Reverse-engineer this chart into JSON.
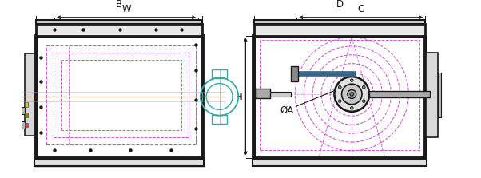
{
  "bg_color": "#ffffff",
  "lc": "#1a1a1a",
  "mg": "#cc55cc",
  "og": "#ff8833",
  "tl": "#33aaaa",
  "fig_width": 6.02,
  "fig_height": 2.23,
  "labels": {
    "B": "B",
    "W": "W",
    "D": "D",
    "C": "C",
    "H": "H",
    "OA": "ØA"
  }
}
